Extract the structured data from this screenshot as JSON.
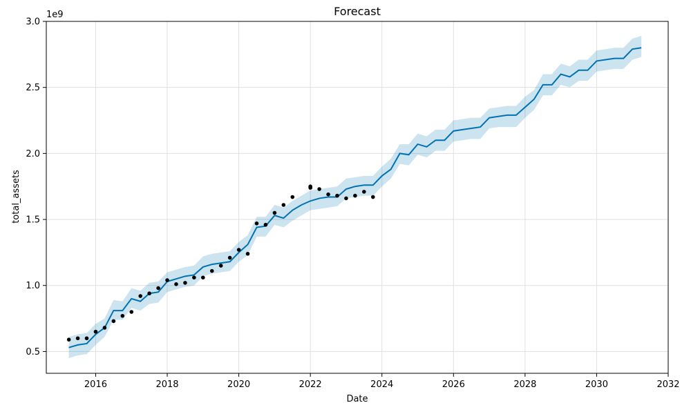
{
  "chart_data": {
    "type": "line",
    "title": "Forecast",
    "xlabel": "Date",
    "ylabel": "total_assets",
    "y_scale_label": "1e9",
    "xlim": [
      2014.62,
      2032.0
    ],
    "ylim": [
      0.335,
      3.0
    ],
    "x_ticks": [
      2016,
      2018,
      2020,
      2022,
      2024,
      2026,
      2028,
      2030,
      2032
    ],
    "x_tick_labels": [
      "2016",
      "2018",
      "2020",
      "2022",
      "2024",
      "2026",
      "2028",
      "2030",
      "2032"
    ],
    "y_ticks": [
      0.5,
      1.0,
      1.5,
      2.0,
      2.5,
      3.0
    ],
    "y_tick_labels": [
      "0.5",
      "1.0",
      "1.5",
      "2.0",
      "2.5",
      "3.0"
    ],
    "grid": true,
    "colors": {
      "forecast_line": "#0072B2",
      "interval_band": "#0072B2",
      "actual_points": "#000000",
      "grid": "#e0e0e0"
    },
    "series": [
      {
        "name": "actual",
        "kind": "scatter",
        "x": [
          2015.25,
          2015.5,
          2015.75,
          2016.0,
          2016.25,
          2016.5,
          2016.75,
          2017.0,
          2017.25,
          2017.5,
          2017.75,
          2018.0,
          2018.25,
          2018.5,
          2018.75,
          2019.0,
          2019.25,
          2019.5,
          2019.75,
          2020.0,
          2020.25,
          2020.5,
          2020.75,
          2021.0,
          2021.25,
          2021.5,
          2022.0,
          2022.0,
          2022.25,
          2022.5,
          2022.75,
          2023.0,
          2023.25,
          2023.5,
          2023.75
        ],
        "y": [
          0.59,
          0.6,
          0.6,
          0.65,
          0.68,
          0.73,
          0.77,
          0.8,
          0.92,
          0.94,
          0.98,
          1.04,
          1.01,
          1.02,
          1.06,
          1.06,
          1.11,
          1.15,
          1.21,
          1.27,
          1.24,
          1.47,
          1.46,
          1.55,
          1.61,
          1.67,
          1.74,
          1.75,
          1.73,
          1.69,
          1.68,
          1.66,
          1.68,
          1.71,
          1.67
        ]
      },
      {
        "name": "yhat",
        "kind": "line",
        "x": [
          2015.25,
          2015.5,
          2015.75,
          2016.0,
          2016.25,
          2016.5,
          2016.75,
          2017.0,
          2017.25,
          2017.5,
          2017.75,
          2018.0,
          2018.25,
          2018.5,
          2018.75,
          2019.0,
          2019.25,
          2019.5,
          2019.75,
          2020.0,
          2020.25,
          2020.5,
          2020.75,
          2021.0,
          2021.25,
          2021.5,
          2021.75,
          2022.0,
          2022.25,
          2022.5,
          2022.75,
          2023.0,
          2023.25,
          2023.5,
          2023.75,
          2024.0,
          2024.25,
          2024.5,
          2024.75,
          2025.0,
          2025.25,
          2025.5,
          2025.75,
          2026.0,
          2026.25,
          2026.5,
          2026.75,
          2027.0,
          2027.25,
          2027.5,
          2027.75,
          2028.0,
          2028.25,
          2028.5,
          2028.75,
          2029.0,
          2029.25,
          2029.5,
          2029.75,
          2030.0,
          2030.25,
          2030.5,
          2030.75,
          2031.0,
          2031.25
        ],
        "y": [
          0.53,
          0.55,
          0.56,
          0.63,
          0.68,
          0.81,
          0.81,
          0.9,
          0.88,
          0.94,
          0.95,
          1.03,
          1.05,
          1.07,
          1.08,
          1.14,
          1.16,
          1.17,
          1.18,
          1.25,
          1.31,
          1.44,
          1.45,
          1.53,
          1.51,
          1.57,
          1.61,
          1.64,
          1.66,
          1.67,
          1.67,
          1.73,
          1.75,
          1.76,
          1.76,
          1.83,
          1.88,
          2.0,
          1.99,
          2.07,
          2.05,
          2.1,
          2.1,
          2.17,
          2.18,
          2.19,
          2.2,
          2.27,
          2.28,
          2.29,
          2.29,
          2.35,
          2.41,
          2.52,
          2.52,
          2.6,
          2.58,
          2.63,
          2.63,
          2.7,
          2.71,
          2.72,
          2.72,
          2.79,
          2.8
        ]
      },
      {
        "name": "yhat_lower",
        "kind": "band-lower",
        "y": [
          0.45,
          0.47,
          0.48,
          0.55,
          0.61,
          0.74,
          0.74,
          0.83,
          0.81,
          0.86,
          0.87,
          0.95,
          0.97,
          0.99,
          1.0,
          1.07,
          1.09,
          1.1,
          1.11,
          1.18,
          1.23,
          1.37,
          1.37,
          1.46,
          1.44,
          1.49,
          1.53,
          1.57,
          1.58,
          1.59,
          1.6,
          1.66,
          1.67,
          1.68,
          1.68,
          1.75,
          1.81,
          1.92,
          1.91,
          1.99,
          1.97,
          2.02,
          2.02,
          2.09,
          2.1,
          2.11,
          2.11,
          2.19,
          2.2,
          2.2,
          2.2,
          2.27,
          2.33,
          2.44,
          2.44,
          2.52,
          2.5,
          2.55,
          2.55,
          2.62,
          2.63,
          2.64,
          2.64,
          2.71,
          2.73
        ]
      },
      {
        "name": "yhat_upper",
        "kind": "band-upper",
        "y": [
          0.61,
          0.63,
          0.64,
          0.71,
          0.75,
          0.89,
          0.88,
          0.98,
          0.96,
          1.02,
          1.03,
          1.1,
          1.12,
          1.14,
          1.15,
          1.22,
          1.24,
          1.25,
          1.26,
          1.33,
          1.38,
          1.52,
          1.52,
          1.61,
          1.59,
          1.64,
          1.68,
          1.72,
          1.73,
          1.74,
          1.75,
          1.81,
          1.82,
          1.83,
          1.83,
          1.9,
          1.96,
          2.07,
          2.07,
          2.15,
          2.13,
          2.18,
          2.18,
          2.25,
          2.26,
          2.27,
          2.27,
          2.34,
          2.35,
          2.36,
          2.36,
          2.43,
          2.48,
          2.6,
          2.6,
          2.68,
          2.66,
          2.71,
          2.71,
          2.78,
          2.79,
          2.8,
          2.8,
          2.87,
          2.89
        ]
      }
    ]
  }
}
